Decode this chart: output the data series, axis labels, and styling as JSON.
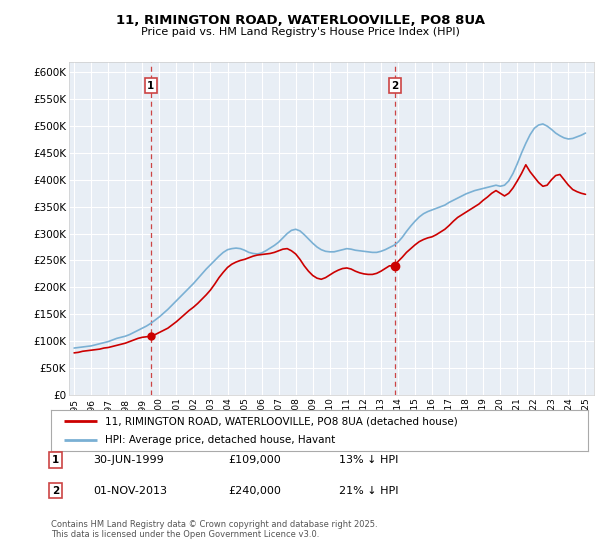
{
  "title": "11, RIMINGTON ROAD, WATERLOOVILLE, PO8 8UA",
  "subtitle": "Price paid vs. HM Land Registry's House Price Index (HPI)",
  "ylim": [
    0,
    620000
  ],
  "yticks": [
    0,
    50000,
    100000,
    150000,
    200000,
    250000,
    300000,
    350000,
    400000,
    450000,
    500000,
    550000,
    600000
  ],
  "ytick_labels": [
    "£0",
    "£50K",
    "£100K",
    "£150K",
    "£200K",
    "£250K",
    "£300K",
    "£350K",
    "£400K",
    "£450K",
    "£500K",
    "£550K",
    "£600K"
  ],
  "background_color": "#ffffff",
  "plot_bg_color": "#e8eef5",
  "grid_color": "#ffffff",
  "red_line_color": "#cc0000",
  "blue_line_color": "#7ab0d4",
  "vline_color": "#cc4444",
  "marker1_x": 1999.5,
  "marker1_y": 109000,
  "marker1_label": "1",
  "marker1_date": "30-JUN-1999",
  "marker1_price": "£109,000",
  "marker1_hpi": "13% ↓ HPI",
  "marker2_x": 2013.83,
  "marker2_y": 240000,
  "marker2_label": "2",
  "marker2_date": "01-NOV-2013",
  "marker2_price": "£240,000",
  "marker2_hpi": "21% ↓ HPI",
  "legend_line1": "11, RIMINGTON ROAD, WATERLOOVILLE, PO8 8UA (detached house)",
  "legend_line2": "HPI: Average price, detached house, Havant",
  "footer": "Contains HM Land Registry data © Crown copyright and database right 2025.\nThis data is licensed under the Open Government Licence v3.0.",
  "xlim": [
    1994.7,
    2025.5
  ],
  "hpi_x": [
    1995.0,
    1995.25,
    1995.5,
    1995.75,
    1996.0,
    1996.25,
    1996.5,
    1996.75,
    1997.0,
    1997.25,
    1997.5,
    1997.75,
    1998.0,
    1998.25,
    1998.5,
    1998.75,
    1999.0,
    1999.25,
    1999.5,
    1999.75,
    2000.0,
    2000.25,
    2000.5,
    2000.75,
    2001.0,
    2001.25,
    2001.5,
    2001.75,
    2002.0,
    2002.25,
    2002.5,
    2002.75,
    2003.0,
    2003.25,
    2003.5,
    2003.75,
    2004.0,
    2004.25,
    2004.5,
    2004.75,
    2005.0,
    2005.25,
    2005.5,
    2005.75,
    2006.0,
    2006.25,
    2006.5,
    2006.75,
    2007.0,
    2007.25,
    2007.5,
    2007.75,
    2008.0,
    2008.25,
    2008.5,
    2008.75,
    2009.0,
    2009.25,
    2009.5,
    2009.75,
    2010.0,
    2010.25,
    2010.5,
    2010.75,
    2011.0,
    2011.25,
    2011.5,
    2011.75,
    2012.0,
    2012.25,
    2012.5,
    2012.75,
    2013.0,
    2013.25,
    2013.5,
    2013.75,
    2014.0,
    2014.25,
    2014.5,
    2014.75,
    2015.0,
    2015.25,
    2015.5,
    2015.75,
    2016.0,
    2016.25,
    2016.5,
    2016.75,
    2017.0,
    2017.25,
    2017.5,
    2017.75,
    2018.0,
    2018.25,
    2018.5,
    2018.75,
    2019.0,
    2019.25,
    2019.5,
    2019.75,
    2020.0,
    2020.25,
    2020.5,
    2020.75,
    2021.0,
    2021.25,
    2021.5,
    2021.75,
    2022.0,
    2022.25,
    2022.5,
    2022.75,
    2023.0,
    2023.25,
    2023.5,
    2023.75,
    2024.0,
    2024.25,
    2024.5,
    2024.75,
    2025.0
  ],
  "hpi_y": [
    87000,
    88000,
    89000,
    90000,
    91000,
    93000,
    95000,
    97000,
    99000,
    102000,
    105000,
    107000,
    109000,
    112000,
    116000,
    120000,
    124000,
    128000,
    133000,
    139000,
    145000,
    152000,
    159000,
    167000,
    175000,
    183000,
    191000,
    199000,
    207000,
    216000,
    225000,
    234000,
    242000,
    250000,
    258000,
    265000,
    270000,
    272000,
    273000,
    272000,
    269000,
    265000,
    263000,
    262000,
    264000,
    268000,
    273000,
    278000,
    284000,
    292000,
    300000,
    306000,
    308000,
    305000,
    298000,
    290000,
    282000,
    275000,
    270000,
    267000,
    266000,
    266000,
    268000,
    270000,
    272000,
    271000,
    269000,
    268000,
    267000,
    266000,
    265000,
    265000,
    267000,
    270000,
    274000,
    278000,
    284000,
    293000,
    304000,
    314000,
    323000,
    331000,
    337000,
    341000,
    344000,
    347000,
    350000,
    353000,
    358000,
    362000,
    366000,
    370000,
    374000,
    377000,
    380000,
    382000,
    384000,
    386000,
    388000,
    390000,
    388000,
    390000,
    398000,
    412000,
    430000,
    450000,
    468000,
    484000,
    496000,
    502000,
    504000,
    500000,
    494000,
    487000,
    482000,
    478000,
    476000,
    477000,
    480000,
    483000,
    487000
  ],
  "red_x": [
    1995.0,
    1995.25,
    1995.5,
    1995.75,
    1996.0,
    1996.25,
    1996.5,
    1996.75,
    1997.0,
    1997.25,
    1997.5,
    1997.75,
    1998.0,
    1998.25,
    1998.5,
    1998.75,
    1999.0,
    1999.25,
    1999.5,
    1999.75,
    2000.0,
    2000.25,
    2000.5,
    2000.75,
    2001.0,
    2001.25,
    2001.5,
    2001.75,
    2002.0,
    2002.25,
    2002.5,
    2002.75,
    2003.0,
    2003.25,
    2003.5,
    2003.75,
    2004.0,
    2004.25,
    2004.5,
    2004.75,
    2005.0,
    2005.25,
    2005.5,
    2005.75,
    2006.0,
    2006.25,
    2006.5,
    2006.75,
    2007.0,
    2007.25,
    2007.5,
    2007.75,
    2008.0,
    2008.25,
    2008.5,
    2008.75,
    2009.0,
    2009.25,
    2009.5,
    2009.75,
    2010.0,
    2010.25,
    2010.5,
    2010.75,
    2011.0,
    2011.25,
    2011.5,
    2011.75,
    2012.0,
    2012.25,
    2012.5,
    2012.75,
    2013.0,
    2013.25,
    2013.5,
    2013.83,
    2014.0,
    2014.25,
    2014.5,
    2014.75,
    2015.0,
    2015.25,
    2015.5,
    2015.75,
    2016.0,
    2016.25,
    2016.5,
    2016.75,
    2017.0,
    2017.25,
    2017.5,
    2017.75,
    2018.0,
    2018.25,
    2018.5,
    2018.75,
    2019.0,
    2019.25,
    2019.5,
    2019.75,
    2020.0,
    2020.25,
    2020.5,
    2020.75,
    2021.0,
    2021.25,
    2021.5,
    2021.75,
    2022.0,
    2022.25,
    2022.5,
    2022.75,
    2023.0,
    2023.25,
    2023.5,
    2023.75,
    2024.0,
    2024.25,
    2024.5,
    2024.75,
    2025.0
  ],
  "red_y": [
    78000,
    79000,
    81000,
    82000,
    83000,
    84000,
    85000,
    87000,
    88000,
    90000,
    92000,
    94000,
    96000,
    99000,
    102000,
    105000,
    107000,
    108000,
    109000,
    112000,
    116000,
    120000,
    124000,
    130000,
    136000,
    143000,
    150000,
    157000,
    163000,
    170000,
    178000,
    186000,
    195000,
    206000,
    218000,
    228000,
    237000,
    243000,
    247000,
    250000,
    252000,
    255000,
    258000,
    260000,
    261000,
    262000,
    263000,
    265000,
    268000,
    271000,
    272000,
    268000,
    262000,
    252000,
    240000,
    230000,
    222000,
    217000,
    215000,
    218000,
    223000,
    228000,
    232000,
    235000,
    236000,
    234000,
    230000,
    227000,
    225000,
    224000,
    224000,
    226000,
    230000,
    235000,
    240000,
    240000,
    248000,
    256000,
    265000,
    272000,
    279000,
    285000,
    289000,
    292000,
    294000,
    298000,
    303000,
    308000,
    315000,
    323000,
    330000,
    335000,
    340000,
    345000,
    350000,
    355000,
    362000,
    368000,
    375000,
    380000,
    375000,
    370000,
    375000,
    385000,
    398000,
    412000,
    428000,
    415000,
    405000,
    395000,
    388000,
    390000,
    400000,
    408000,
    410000,
    400000,
    390000,
    382000,
    378000,
    375000,
    373000
  ]
}
